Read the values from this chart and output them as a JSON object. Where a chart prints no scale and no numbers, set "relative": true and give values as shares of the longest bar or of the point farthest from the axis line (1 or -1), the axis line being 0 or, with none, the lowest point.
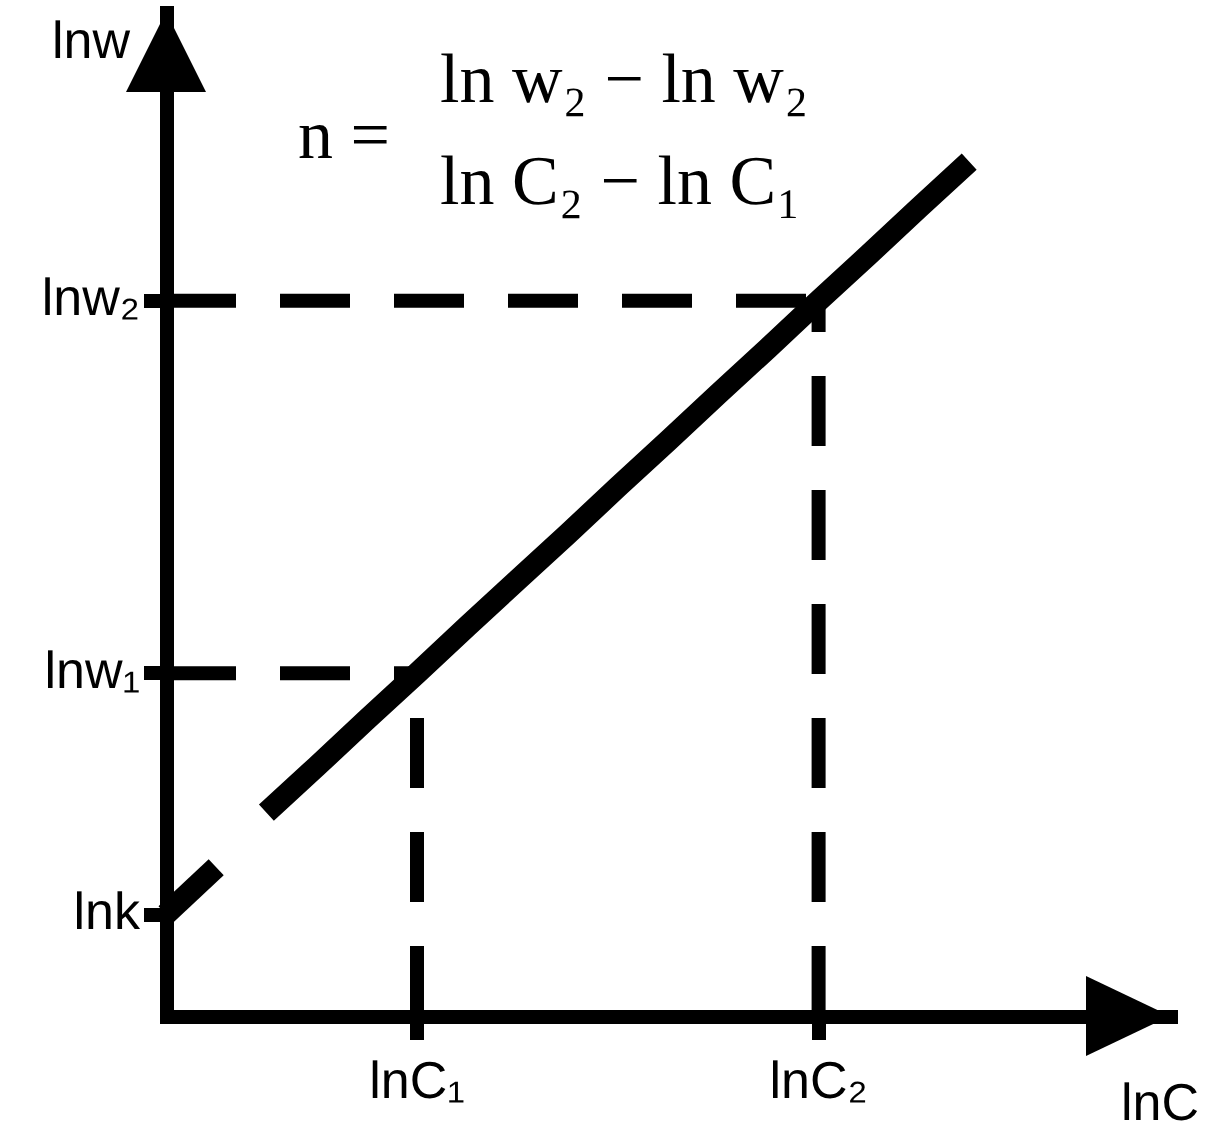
{
  "chart_data": {
    "type": "line",
    "relative": true,
    "xlabel": "lnC",
    "ylabel": "lnw",
    "annotations": [
      "n =",
      "ln w₂ − ln w₂",
      "ln C₂ − ln C₁",
      "lnw₂",
      "lnw₁",
      "lnk"
    ],
    "categories": [
      null,
      null,
      null,
      null,
      null,
      "lnC₁",
      null,
      null,
      null,
      null,
      null,
      null,
      null,
      "lnC₂",
      null,
      null,
      null,
      null,
      null,
      null,
      null
    ],
    "series": [
      {
        "color": "#000000",
        "line_style": "dashed",
        "values": [
          0.837,
          0.837,
          0.837,
          0.837,
          0.837,
          0.837,
          0.837,
          0.837,
          0.837,
          0.837,
          0.837,
          0.837,
          0.837,
          0.837,
          null,
          null,
          null,
          null,
          null,
          null,
          null
        ]
      },
      {
        "color": "#000000",
        "line_style": "dashed",
        "x": [
          "lnC₂",
          "lnC₂"
        ],
        "values": [
          0,
          0.837
        ]
      },
      {
        "color": "#000000",
        "line_style": "dashed",
        "values": [
          0.401,
          0.401,
          0.401,
          0.401,
          0.401,
          0.401,
          null,
          null,
          null,
          null,
          null,
          null,
          null,
          null,
          null,
          null,
          null,
          null,
          null,
          null,
          null
        ]
      },
      {
        "color": "#000000",
        "line_style": "dashed",
        "x": [
          "lnC₁",
          "lnC₁"
        ],
        "values": [
          0,
          0.401
        ]
      },
      {
        "color": "#000000",
        "line_style": "solid",
        "values": [
          0.119,
          0.174,
          null,
          null,
          null,
          null,
          null,
          null,
          null,
          null,
          null,
          null,
          null,
          null,
          null,
          null,
          null,
          null,
          null,
          null,
          null
        ]
      },
      {
        "color": "#000000",
        "line_style": "solid",
        "values": [
          null,
          null,
          0.238,
          0.292,
          0.347,
          0.401,
          0.456,
          0.51,
          0.564,
          0.619,
          0.673,
          0.728,
          0.782,
          0.837,
          0.891,
          0.946,
          1,
          null,
          null,
          null,
          null
        ]
      }
    ],
    "grid": false,
    "legend": false,
    "marker": "none"
  }
}
